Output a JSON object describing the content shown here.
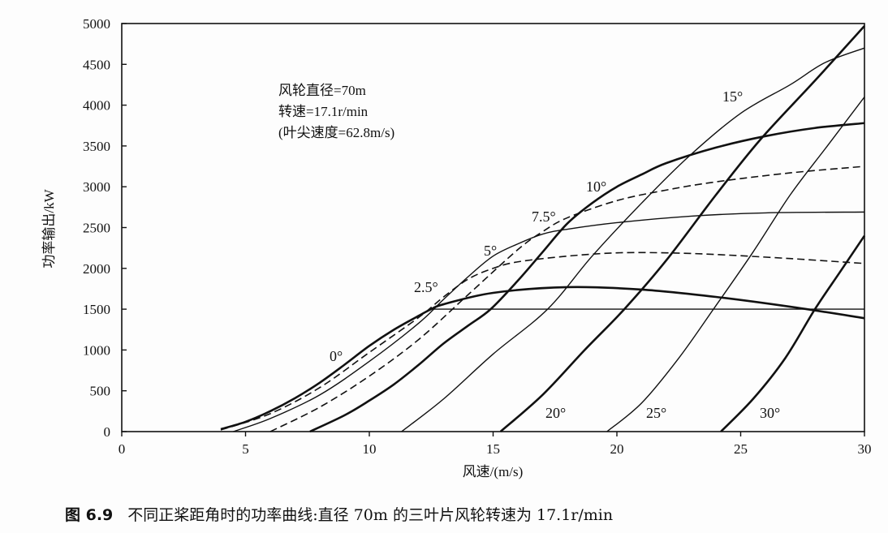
{
  "chart_data": {
    "type": "line",
    "title": "",
    "xlabel": "风速/(m/s)",
    "ylabel": "功率输出/kW",
    "xlim": [
      0,
      30
    ],
    "ylim": [
      0,
      5000
    ],
    "xticks": [
      0,
      5,
      10,
      15,
      20,
      25,
      30
    ],
    "yticks": [
      0,
      500,
      1000,
      1500,
      2000,
      2500,
      3000,
      3500,
      4000,
      4500,
      5000
    ],
    "grid": false,
    "annotations": [
      "风轮直径=70m",
      "转速=17.1r/min",
      "(叶尖速度=62.8m/s)"
    ],
    "series": [
      {
        "name": "0°",
        "style": "thick",
        "x": [
          4,
          5,
          6,
          7,
          8,
          9,
          10,
          11,
          12,
          12.5,
          13,
          15,
          18,
          21,
          24,
          27,
          30
        ],
        "y": [
          30,
          120,
          250,
          410,
          600,
          820,
          1050,
          1250,
          1420,
          1500,
          1560,
          1700,
          1770,
          1740,
          1650,
          1530,
          1390
        ]
      },
      {
        "name": "",
        "style": "thin",
        "x": [
          12.5,
          30
        ],
        "y": [
          1500,
          1500
        ]
      },
      {
        "name": "2.5°",
        "style": "dashed",
        "x": [
          4,
          6,
          8,
          10,
          12,
          13,
          14,
          15,
          16,
          18,
          20,
          22,
          24,
          27,
          30
        ],
        "y": [
          20,
          220,
          540,
          970,
          1400,
          1650,
          1870,
          2000,
          2080,
          2150,
          2190,
          2190,
          2170,
          2120,
          2060
        ]
      },
      {
        "name": "5°",
        "style": "thin",
        "x": [
          4.5,
          6,
          8,
          10,
          12,
          13,
          14,
          15,
          16,
          17,
          18,
          20,
          23,
          26,
          30
        ],
        "y": [
          0,
          160,
          450,
          860,
          1330,
          1620,
          1900,
          2150,
          2300,
          2420,
          2480,
          2560,
          2640,
          2680,
          2690
        ]
      },
      {
        "name": "7.5°",
        "style": "dashed",
        "x": [
          6,
          8,
          10,
          12,
          14,
          16,
          17,
          18,
          20,
          22,
          24,
          27,
          30
        ],
        "y": [
          0,
          300,
          680,
          1130,
          1680,
          2230,
          2450,
          2620,
          2830,
          2960,
          3060,
          3170,
          3250
        ]
      },
      {
        "name": "10°",
        "style": "thick",
        "x": [
          7.6,
          9,
          10,
          11,
          12,
          13,
          14,
          14.9,
          16,
          17,
          18,
          19,
          20,
          21,
          22,
          24,
          26,
          28,
          30
        ],
        "y": [
          0,
          200,
          380,
          580,
          820,
          1080,
          1300,
          1500,
          1850,
          2200,
          2550,
          2800,
          3000,
          3150,
          3290,
          3480,
          3620,
          3720,
          3780
        ]
      },
      {
        "name": "15°",
        "style": "thin",
        "x": [
          11.3,
          13,
          15,
          17.2,
          19,
          21,
          22.9,
          25,
          27,
          28.4,
          30
        ],
        "y": [
          0,
          400,
          950,
          1500,
          2150,
          2800,
          3370,
          3900,
          4250,
          4520,
          4700
        ]
      },
      {
        "name": "20°",
        "style": "thick",
        "x": [
          15.3,
          17,
          18.7,
          20.3,
          22,
          24,
          25.8,
          28,
          30
        ],
        "y": [
          0,
          450,
          1000,
          1500,
          2100,
          2900,
          3580,
          4300,
          4970
        ]
      },
      {
        "name": "25°",
        "style": "thin",
        "x": [
          19.6,
          21,
          22.5,
          23.9,
          25.5,
          27,
          28.5,
          30
        ],
        "y": [
          0,
          350,
          900,
          1500,
          2200,
          2900,
          3500,
          4100
        ]
      },
      {
        "name": "30°",
        "style": "thick",
        "x": [
          24.2,
          25.5,
          26.8,
          28,
          29,
          30
        ],
        "y": [
          0,
          400,
          900,
          1500,
          1950,
          2400
        ]
      }
    ]
  },
  "caption": {
    "number": "图 6.9",
    "text": "不同正桨距角时的功率曲线:直径 70m 的三叶片风轮转速为 17.1r/min"
  }
}
